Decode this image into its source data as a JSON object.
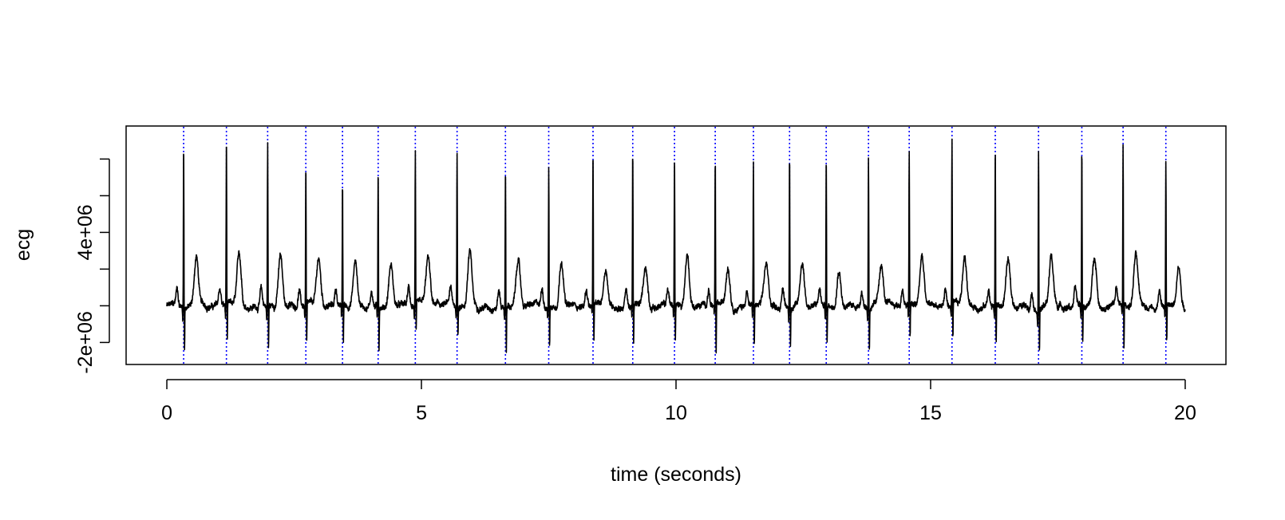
{
  "chart_data": {
    "type": "line",
    "title": "",
    "xlabel": "time (seconds)",
    "ylabel": "ecg",
    "xlim": [
      -0.8,
      20.8
    ],
    "ylim": [
      -3200000,
      9800000
    ],
    "x_ticks": [
      0,
      5,
      10,
      15,
      20
    ],
    "x_tick_labels": [
      "0",
      "5",
      "10",
      "15",
      "20"
    ],
    "y_ticks": [
      -2000000,
      0,
      2000000,
      4000000,
      6000000,
      8000000
    ],
    "y_tick_labels": [
      "-2e+06",
      "",
      "",
      "4e+06",
      "",
      ""
    ],
    "grid": false,
    "legend": "none",
    "colors": {
      "signal": "#000000",
      "markers": "#0000ff"
    },
    "series": [
      {
        "line_style": "solid",
        "beats": [
          {
            "t": 0.33,
            "r": 8.9,
            "s": -2.5,
            "tw": 3.3
          },
          {
            "t": 1.17,
            "r": 9.1,
            "s": -1.9,
            "tw": 3.3
          },
          {
            "t": 1.98,
            "r": 8.9,
            "s": -2.4,
            "tw": 3.3
          },
          {
            "t": 2.73,
            "r": 7.6,
            "s": -2.2,
            "tw": 3.1
          },
          {
            "t": 3.45,
            "r": 6.6,
            "s": -2.0,
            "tw": 3.0
          },
          {
            "t": 4.15,
            "r": 7.6,
            "s": -2.3,
            "tw": 2.9
          },
          {
            "t": 4.88,
            "r": 8.2,
            "s": -1.7,
            "tw": 3.1
          },
          {
            "t": 5.7,
            "r": 8.4,
            "s": -1.7,
            "tw": 3.6
          },
          {
            "t": 6.65,
            "r": 7.6,
            "s": -2.5,
            "tw": 3.1
          },
          {
            "t": 7.5,
            "r": 7.7,
            "s": -2.3,
            "tw": 3.2
          },
          {
            "t": 8.37,
            "r": 8.3,
            "s": -2.1,
            "tw": 2.6
          },
          {
            "t": 9.15,
            "r": 8.3,
            "s": -2.1,
            "tw": 2.7
          },
          {
            "t": 9.97,
            "r": 8.2,
            "s": -2.0,
            "tw": 3.4
          },
          {
            "t": 10.77,
            "r": 7.8,
            "s": -2.8,
            "tw": 2.8
          },
          {
            "t": 11.52,
            "r": 7.9,
            "s": -2.3,
            "tw": 2.8
          },
          {
            "t": 12.23,
            "r": 8.4,
            "s": -2.1,
            "tw": 3.0
          },
          {
            "t": 12.95,
            "r": 8.1,
            "s": -2.2,
            "tw": 2.7
          },
          {
            "t": 13.78,
            "r": 8.3,
            "s": -2.4,
            "tw": 2.8
          },
          {
            "t": 14.58,
            "r": 8.5,
            "s": -1.8,
            "tw": 3.3
          },
          {
            "t": 15.42,
            "r": 9.0,
            "s": -2.0,
            "tw": 3.3
          },
          {
            "t": 16.27,
            "r": 8.7,
            "s": -2.1,
            "tw": 3.1
          },
          {
            "t": 17.12,
            "r": 8.6,
            "s": -2.4,
            "tw": 3.3
          },
          {
            "t": 17.97,
            "r": 8.5,
            "s": -2.1,
            "tw": 3.3
          },
          {
            "t": 18.78,
            "r": 8.7,
            "s": -2.6,
            "tw": 3.4
          },
          {
            "t": 19.62,
            "r": 7.9,
            "s": -2.0,
            "tw": 2.9
          }
        ],
        "units": "1e6",
        "x_range": [
          0,
          20
        ]
      },
      {
        "line_style": "dotted",
        "x": [
          0.33,
          1.17,
          1.98,
          2.73,
          3.45,
          4.15,
          4.88,
          5.7,
          6.65,
          7.5,
          8.37,
          9.15,
          9.97,
          10.77,
          11.52,
          12.23,
          12.95,
          13.78,
          14.58,
          15.42,
          16.27,
          17.12,
          17.97,
          18.78,
          19.62
        ]
      }
    ]
  }
}
